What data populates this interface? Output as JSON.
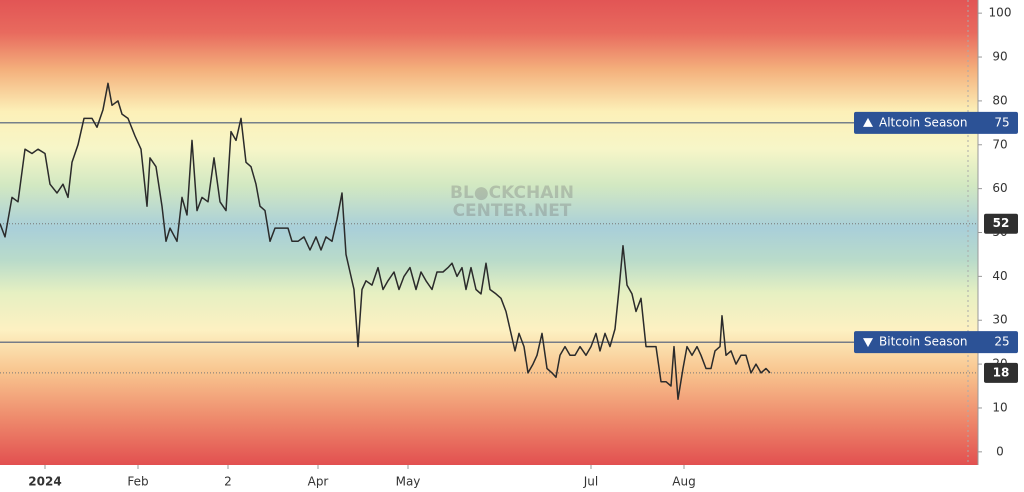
{
  "chart_data": {
    "type": "line",
    "watermark": [
      "BL●CKCHAIN",
      "CENTER.NET"
    ],
    "x": [
      0,
      5,
      12,
      18,
      25,
      32,
      38,
      45,
      50,
      57,
      63,
      68,
      72,
      78,
      84,
      92,
      97,
      103,
      108,
      112,
      118,
      122,
      128,
      135,
      141,
      147,
      150,
      156,
      162,
      166,
      170,
      177,
      182,
      187,
      192,
      197,
      202,
      208,
      214,
      220,
      226,
      231,
      236,
      241,
      246,
      251,
      256,
      260,
      265,
      270,
      275,
      281,
      288,
      292,
      298,
      304,
      310,
      316,
      321,
      326,
      332,
      337,
      342,
      346,
      350,
      354,
      358,
      362,
      366,
      372,
      378,
      383,
      388,
      394,
      399,
      404,
      410,
      416,
      421,
      426,
      432,
      437,
      443,
      448,
      452,
      457,
      462,
      466,
      471,
      476,
      481,
      486,
      490,
      496,
      501,
      506,
      510,
      515,
      519,
      524,
      528,
      533,
      537,
      542,
      547,
      552,
      556,
      560,
      565,
      570,
      575,
      580,
      586,
      591,
      596,
      600,
      605,
      610,
      615,
      619,
      623,
      627,
      632,
      636,
      641,
      646,
      651,
      656,
      661,
      666,
      671,
      674,
      678,
      683,
      687,
      692,
      697,
      701,
      706,
      711,
      715,
      720,
      722,
      726,
      731,
      736,
      741,
      746,
      751,
      756,
      761,
      766,
      770
    ],
    "values": [
      52,
      49,
      58,
      57,
      69,
      68,
      69,
      68,
      61,
      59,
      61,
      58,
      66,
      70,
      76,
      76,
      74,
      78,
      84,
      79,
      80,
      77,
      76,
      72,
      69,
      56,
      67,
      65,
      56,
      48,
      51,
      48,
      58,
      54,
      71,
      55,
      58,
      57,
      67,
      57,
      55,
      73,
      71,
      76,
      66,
      65,
      61,
      56,
      55,
      48,
      51,
      51,
      51,
      48,
      48,
      49,
      46,
      49,
      46,
      49,
      48,
      53,
      59,
      45,
      41,
      37,
      24,
      37,
      39,
      38,
      42,
      37,
      39,
      41,
      37,
      40,
      42,
      37,
      41,
      39,
      37,
      41,
      41,
      42,
      43,
      40,
      42,
      37,
      42,
      37,
      36,
      43,
      37,
      36,
      35,
      32,
      28,
      23,
      27,
      24,
      18,
      20,
      22,
      27,
      19,
      18,
      17,
      22,
      24,
      22,
      22,
      24,
      22,
      24,
      27,
      23,
      27,
      24,
      28,
      37,
      47,
      38,
      36,
      32,
      35,
      24,
      24,
      24,
      16,
      16,
      15,
      24,
      12,
      19,
      24,
      22,
      24,
      22,
      19,
      19,
      23,
      24,
      31,
      22,
      23,
      20,
      22,
      22,
      18,
      20,
      18,
      19,
      18
    ],
    "color": "#2b2b2b",
    "xlim": [
      0,
      978
    ],
    "xticks": [
      {
        "value": 45,
        "label": "2024"
      },
      {
        "value": 138,
        "label": "Feb"
      },
      {
        "value": 228,
        "label": "2"
      },
      {
        "value": 318,
        "label": "Apr"
      },
      {
        "value": 408,
        "label": "May"
      },
      {
        "value": 591,
        "label": "Jul"
      },
      {
        "value": 684,
        "label": "Aug"
      }
    ],
    "ylim": [
      -3,
      103
    ],
    "yticks": [
      0,
      10,
      20,
      30,
      40,
      50,
      60,
      70,
      80,
      90,
      100
    ],
    "annotations": [
      {
        "label": "Altcoin Season",
        "value": 75,
        "direction": "up"
      },
      {
        "label": "Bitcoin Season",
        "value": 25,
        "direction": "down"
      }
    ],
    "markers": [
      52,
      18
    ]
  }
}
